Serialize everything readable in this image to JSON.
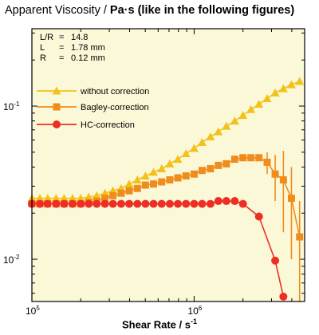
{
  "title": {
    "prefix": "Apparent Viscosity / ",
    "unit": "Pa·s",
    "suffix": "  (like in the following figures)"
  },
  "xlabel_text": "Shear Rate / s",
  "xlabel_sup": "-1",
  "notes": [
    {
      "label": "L/R",
      "eq": "=",
      "value": "14.8"
    },
    {
      "label": "L",
      "eq": "=",
      "value": "1.78 mm"
    },
    {
      "label": "R",
      "eq": "=",
      "value": "0.12 mm"
    }
  ],
  "chart_data": {
    "type": "scatter",
    "x_scale": "log",
    "y_scale": "log",
    "xlim": [
      100000,
      4800000
    ],
    "ylim": [
      0.0053,
      0.32
    ],
    "x_ticks": [
      {
        "value": 100000,
        "base": "10",
        "exp": "5"
      },
      {
        "value": 1000000,
        "base": "10",
        "exp": "6"
      }
    ],
    "y_ticks": [
      {
        "value": 0.1,
        "base": "10",
        "exp": "-1"
      },
      {
        "value": 0.01,
        "base": "10",
        "exp": "-2"
      }
    ],
    "legend_placement": "left",
    "background": "#fbf8d8",
    "series": [
      {
        "name": "without correction",
        "marker": "triangle",
        "color": "#f2c21b",
        "x": [
          100000,
          112000,
          125000,
          141000,
          158000,
          178000,
          200000,
          224000,
          251000,
          282000,
          316000,
          355000,
          398000,
          447000,
          501000,
          562000,
          631000,
          708000,
          794000,
          891000,
          1000000,
          1120000,
          1260000,
          1410000,
          1580000,
          1780000,
          2000000,
          2240000,
          2510000,
          2820000,
          3160000,
          3550000,
          3980000,
          4470000
        ],
        "y": [
          0.025,
          0.025,
          0.025,
          0.025,
          0.025,
          0.025,
          0.025,
          0.0255,
          0.026,
          0.027,
          0.028,
          0.029,
          0.031,
          0.033,
          0.035,
          0.037,
          0.039,
          0.042,
          0.045,
          0.049,
          0.053,
          0.058,
          0.063,
          0.068,
          0.074,
          0.08,
          0.087,
          0.095,
          0.103,
          0.112,
          0.122,
          0.13,
          0.138,
          0.145
        ]
      },
      {
        "name": "Bagley-correction",
        "marker": "square",
        "color": "#f08c1c",
        "x": [
          100000,
          112000,
          125000,
          141000,
          158000,
          178000,
          200000,
          224000,
          251000,
          282000,
          316000,
          355000,
          398000,
          447000,
          501000,
          562000,
          631000,
          708000,
          794000,
          891000,
          1000000,
          1120000,
          1260000,
          1410000,
          1580000,
          1780000,
          2000000,
          2240000,
          2510000,
          2820000,
          3160000,
          3550000,
          3980000,
          4470000
        ],
        "y": [
          0.023,
          0.023,
          0.023,
          0.023,
          0.023,
          0.023,
          0.023,
          0.0235,
          0.024,
          0.025,
          0.026,
          0.027,
          0.028,
          0.029,
          0.0305,
          0.031,
          0.032,
          0.033,
          0.034,
          0.035,
          0.036,
          0.038,
          0.039,
          0.041,
          0.042,
          0.045,
          0.046,
          0.046,
          0.046,
          0.043,
          0.036,
          0.033,
          0.025,
          0.014
        ],
        "y_err": [
          0,
          0,
          0,
          0,
          0,
          0,
          0,
          0,
          0,
          0,
          0,
          0,
          0,
          0,
          0,
          0,
          0,
          0,
          0,
          0,
          0,
          0,
          0,
          0,
          0,
          0,
          0,
          0,
          0,
          0.007,
          0.012,
          0.018,
          0.015,
          0.01
        ]
      },
      {
        "name": "HC-correction",
        "marker": "circle",
        "color": "#ee2e24",
        "x": [
          100000,
          112000,
          125000,
          141000,
          158000,
          178000,
          200000,
          224000,
          251000,
          282000,
          316000,
          355000,
          398000,
          447000,
          501000,
          562000,
          631000,
          708000,
          794000,
          891000,
          1000000,
          1120000,
          1260000,
          1410000,
          1580000,
          1780000,
          2000000,
          2510000,
          3160000,
          3550000
        ],
        "y": [
          0.023,
          0.023,
          0.023,
          0.023,
          0.023,
          0.023,
          0.023,
          0.023,
          0.023,
          0.023,
          0.023,
          0.023,
          0.023,
          0.023,
          0.023,
          0.023,
          0.023,
          0.023,
          0.023,
          0.023,
          0.023,
          0.023,
          0.023,
          0.024,
          0.024,
          0.024,
          0.023,
          0.019,
          0.0098,
          0.0057
        ]
      }
    ]
  }
}
